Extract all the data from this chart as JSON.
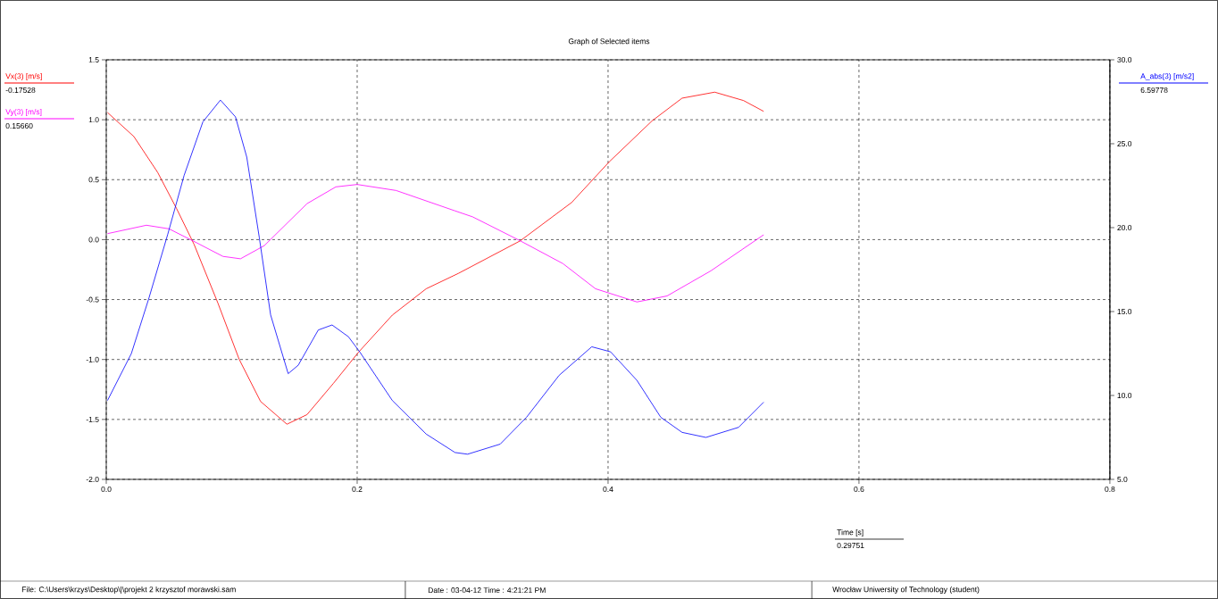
{
  "chart_data": {
    "type": "line",
    "title": "Graph of Selected items",
    "xlabel": "Time [s]",
    "xlim": [
      0,
      0.8
    ],
    "xticks": [
      {
        "value": 0,
        "label": "0.0"
      },
      0.2,
      0.4,
      0.6,
      0.8
    ],
    "ylim": [
      -2,
      1.5
    ],
    "yticks": [
      {
        "value": -2,
        "label": "-2.0"
      },
      -1.5,
      {
        "value": -1,
        "label": "-1.0"
      },
      -0.5,
      {
        "value": 0,
        "label": "0.0"
      },
      0.5,
      {
        "value": 1,
        "label": "1.0"
      },
      1.5
    ],
    "y2lim": [
      5,
      30
    ],
    "y2ticks": [
      {
        "value": 5,
        "label": "5.0"
      },
      {
        "value": 10,
        "label": "10.0"
      },
      {
        "value": 15,
        "label": "15.0"
      },
      {
        "value": 20,
        "label": "20.0"
      },
      {
        "value": 25,
        "label": "25.0"
      },
      {
        "value": 30,
        "label": "30.0"
      }
    ],
    "grid": true,
    "series": [
      {
        "name": "Vx(3) [m/s]",
        "color": "#ff0000",
        "x": [
          0.001,
          0.022,
          0.041,
          0.056,
          0.07,
          0.089,
          0.106,
          0.123,
          0.144,
          0.16,
          0.181,
          0.201,
          0.228,
          0.255,
          0.281,
          0.33,
          0.371,
          0.401,
          0.435,
          0.459,
          0.485,
          0.508,
          0.524
        ],
        "values": [
          1.06,
          0.86,
          0.56,
          0.26,
          -0.04,
          -0.53,
          -1.0,
          -1.35,
          -1.54,
          -1.46,
          -1.2,
          -0.94,
          -0.63,
          -0.41,
          -0.28,
          -0.01,
          0.31,
          0.65,
          0.99,
          1.18,
          1.23,
          1.16,
          1.07
        ]
      },
      {
        "name": "Vy(3) [m/s]",
        "color": "#ff00ff",
        "x": [
          0.001,
          0.032,
          0.05,
          0.069,
          0.093,
          0.107,
          0.126,
          0.16,
          0.183,
          0.2,
          0.231,
          0.278,
          0.292,
          0.33,
          0.364,
          0.39,
          0.423,
          0.447,
          0.482,
          0.524
        ],
        "values": [
          0.05,
          0.12,
          0.09,
          -0.01,
          -0.14,
          -0.16,
          -0.05,
          0.3,
          0.44,
          0.46,
          0.41,
          0.24,
          0.19,
          -0.01,
          -0.2,
          -0.41,
          -0.52,
          -0.47,
          -0.26,
          0.04
        ]
      },
      {
        "name": "A_abs(3) [m/s2]",
        "color": "#0000ff",
        "axis": "y2",
        "x": [
          0.001,
          0.02,
          0.034,
          0.049,
          0.062,
          0.077,
          0.091,
          0.103,
          0.112,
          0.122,
          0.131,
          0.145,
          0.153,
          0.169,
          0.18,
          0.193,
          0.202,
          0.228,
          0.255,
          0.278,
          0.288,
          0.314,
          0.335,
          0.361,
          0.387,
          0.402,
          0.423,
          0.442,
          0.459,
          0.478,
          0.504,
          0.524
        ],
        "values": [
          9.7,
          12.5,
          15.8,
          19.6,
          23.1,
          26.3,
          27.6,
          26.6,
          24.2,
          19.4,
          14.8,
          11.3,
          11.8,
          13.9,
          14.2,
          13.5,
          12.6,
          9.7,
          7.7,
          6.6,
          6.5,
          7.1,
          8.7,
          11.2,
          12.9,
          12.6,
          10.9,
          8.7,
          7.8,
          7.5,
          8.1,
          9.6
        ]
      }
    ],
    "annotations": [
      "-0.17528",
      "0.15660",
      "6.59778",
      "0.29751",
      "File: C:\\Users\\krzys\\Desktop\\|\\projekt 2 krzysztof morawski.sam",
      "Date : 03-04-12    Time : 4:21:21 PM",
      "Wrocław Uniwersity of Technology (student)"
    ]
  }
}
